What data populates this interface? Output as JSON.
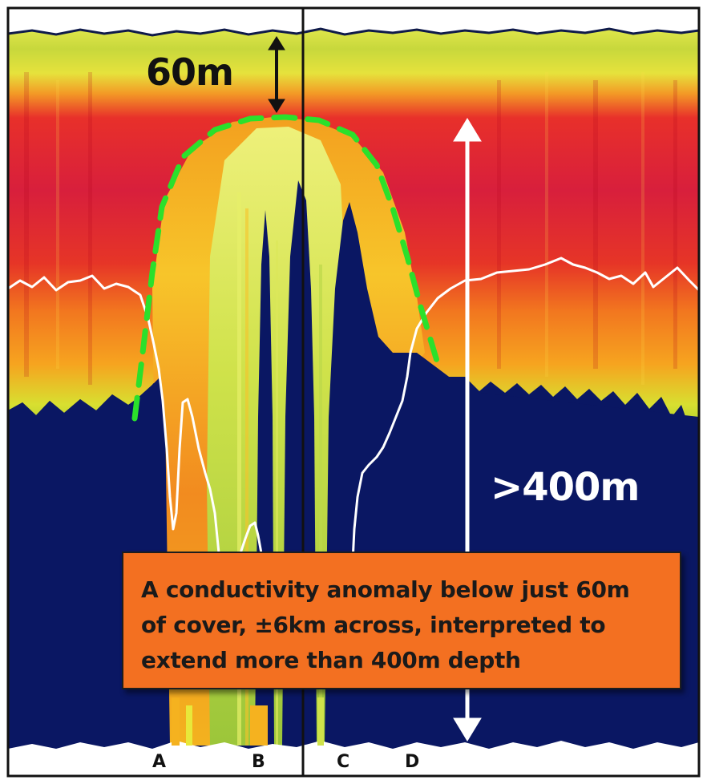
{
  "figure": {
    "annotations": {
      "top_depth": "60m",
      "depth_extent": ">400m"
    },
    "callout_text": "A conductivity anomaly below just 60m\nof cover, ±6km across, interpreted to\nextend more than 400m depth",
    "markers": [
      "A",
      "B",
      "C",
      "D"
    ],
    "colors": {
      "background_deep": "#0A1763",
      "high_conductivity": "#E0222A",
      "mid": "#F58A1F",
      "low": "#E8E83A",
      "lowest": "#A8CF2E",
      "anomaly_outline": "#2BE02B",
      "callout_fill": "#F37021",
      "profile_line": "#FFFFFF"
    }
  }
}
